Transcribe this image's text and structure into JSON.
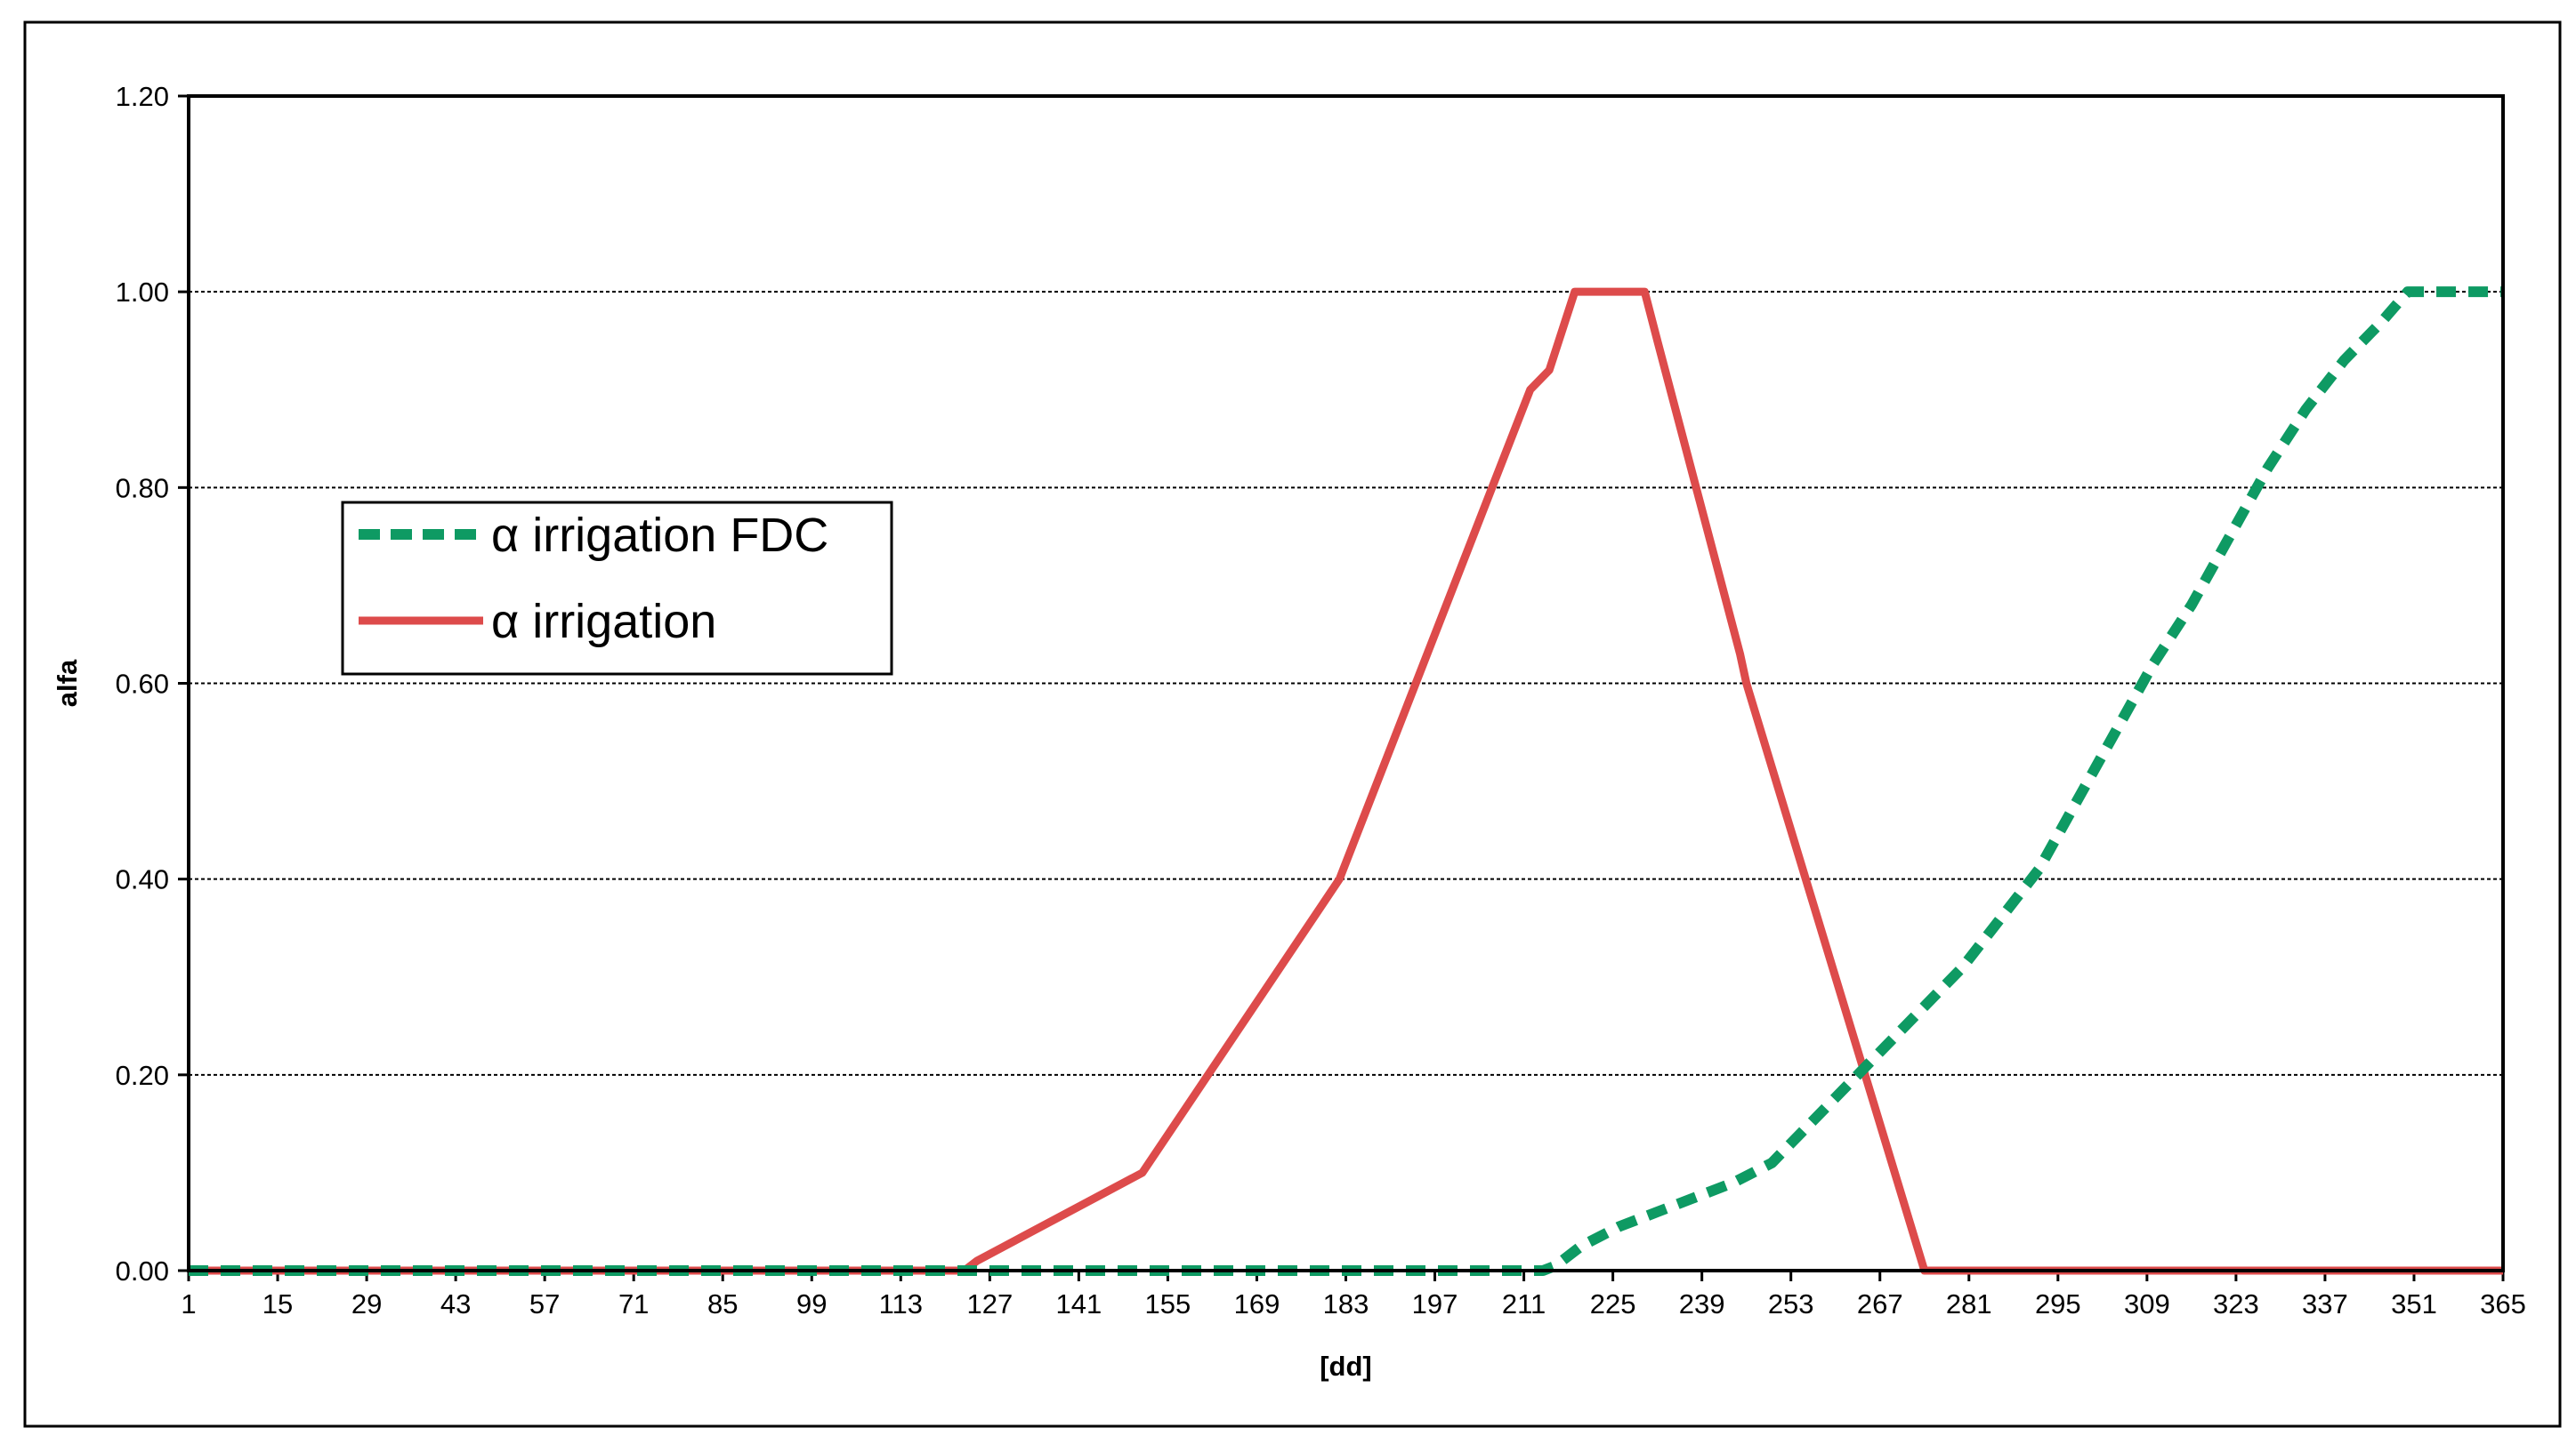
{
  "chart_data": {
    "type": "line",
    "title": "",
    "xlabel": "[dd]",
    "ylabel": "alfa",
    "xlim": [
      1,
      365
    ],
    "ylim": [
      0,
      1.2
    ],
    "grid": true,
    "legend_position": "left",
    "x_ticks": [
      "1",
      "15",
      "29",
      "43",
      "57",
      "71",
      "85",
      "99",
      "113",
      "127",
      "141",
      "155",
      "169",
      "183",
      "197",
      "211",
      "225",
      "239",
      "253",
      "267",
      "281",
      "295",
      "309",
      "323",
      "337",
      "351",
      "365"
    ],
    "y_ticks": [
      "0.00",
      "0.20",
      "0.40",
      "0.60",
      "0.80",
      "1.00",
      "1.20"
    ],
    "series": [
      {
        "name": "α irrigation FDC",
        "color": "#0e9a63",
        "style": "dashed",
        "x": [
          1,
          124,
          214,
          216,
          220,
          226,
          232,
          238,
          244,
          250,
          256,
          262,
          268,
          274,
          280,
          286,
          292,
          298,
          304,
          310,
          316,
          322,
          328,
          334,
          340,
          346,
          350,
          352,
          365
        ],
        "y": [
          0,
          0,
          0,
          0.005,
          0.025,
          0.045,
          0.06,
          0.075,
          0.09,
          0.11,
          0.15,
          0.19,
          0.23,
          0.27,
          0.31,
          0.36,
          0.41,
          0.48,
          0.55,
          0.62,
          0.68,
          0.75,
          0.82,
          0.88,
          0.93,
          0.97,
          1.0,
          1.0,
          1.0
        ]
      },
      {
        "name": "α irrigation",
        "color": "#dd4b4b",
        "style": "solid",
        "x": [
          1,
          123,
          125,
          151,
          182,
          212,
          215,
          217,
          219,
          230,
          232,
          245,
          246,
          274,
          365
        ],
        "y": [
          0,
          0,
          0.01,
          0.1,
          0.4,
          0.9,
          0.92,
          0.96,
          1.0,
          1.0,
          0.95,
          0.63,
          0.6,
          0,
          0
        ]
      }
    ]
  }
}
